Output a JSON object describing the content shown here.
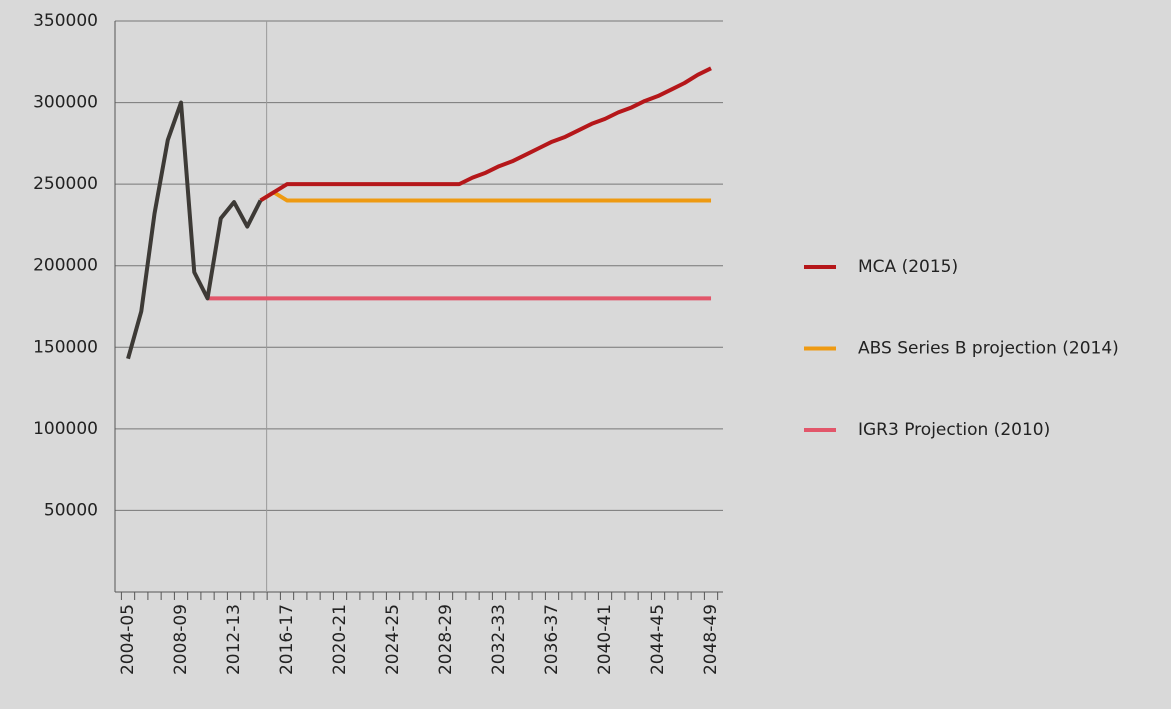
{
  "chart_data": {
    "type": "line",
    "categories": [
      "2004-05",
      null,
      null,
      null,
      "2008-09",
      null,
      null,
      null,
      "2012-13",
      null,
      null,
      null,
      "2016-17",
      null,
      null,
      null,
      "2020-21",
      null,
      null,
      null,
      "2024-25",
      null,
      null,
      null,
      "2028-29",
      null,
      null,
      null,
      "2032-33",
      null,
      null,
      null,
      "2036-37",
      null,
      null,
      null,
      "2040-41",
      null,
      null,
      null,
      "2044-45",
      null,
      null,
      null,
      "2048-49"
    ],
    "series": [
      {
        "color": "#3d3a36",
        "values": [
          143000,
          172000,
          232000,
          277000,
          300000,
          196000,
          180000,
          229000,
          239000,
          224000,
          240000,
          null,
          null,
          null,
          null,
          null,
          null,
          null,
          null,
          null,
          null,
          null,
          null,
          null,
          null,
          null,
          null,
          null,
          null,
          null,
          null,
          null,
          null,
          null,
          null,
          null,
          null,
          null,
          null,
          null,
          null,
          null,
          null,
          null,
          null
        ]
      },
      {
        "name": "MCA (2015)",
        "color": "#b5171a",
        "values": [
          null,
          null,
          null,
          null,
          null,
          null,
          null,
          null,
          null,
          null,
          240000,
          245000,
          250000,
          250000,
          250000,
          250000,
          250000,
          250000,
          250000,
          250000,
          250000,
          250000,
          250000,
          250000,
          250000,
          250000,
          254000,
          257000,
          261000,
          264000,
          268000,
          272000,
          276000,
          279000,
          283000,
          287000,
          290000,
          294000,
          297000,
          301000,
          304000,
          308000,
          312000,
          317000,
          321000
        ]
      },
      {
        "name": "ABS Series B projection (2014)",
        "color": "#ee9a12",
        "values": [
          null,
          null,
          null,
          null,
          null,
          null,
          null,
          null,
          null,
          null,
          240000,
          245000,
          240000,
          240000,
          240000,
          240000,
          240000,
          240000,
          240000,
          240000,
          240000,
          240000,
          240000,
          240000,
          240000,
          240000,
          240000,
          240000,
          240000,
          240000,
          240000,
          240000,
          240000,
          240000,
          240000,
          240000,
          240000,
          240000,
          240000,
          240000,
          240000,
          240000,
          240000,
          240000,
          240000
        ]
      },
      {
        "name": "IGR3 Projection (2010)",
        "color": "#e2566a",
        "values": [
          null,
          null,
          null,
          null,
          null,
          null,
          180000,
          180000,
          180000,
          180000,
          180000,
          180000,
          180000,
          180000,
          180000,
          180000,
          180000,
          180000,
          180000,
          180000,
          180000,
          180000,
          180000,
          180000,
          180000,
          180000,
          180000,
          180000,
          180000,
          180000,
          180000,
          180000,
          180000,
          180000,
          180000,
          180000,
          180000,
          180000,
          180000,
          180000,
          180000,
          180000,
          180000,
          180000,
          180000
        ]
      }
    ],
    "ylim": [
      0,
      350000
    ],
    "yticks": [
      50000,
      100000,
      150000,
      200000,
      250000,
      300000,
      350000
    ],
    "grid": true,
    "legend": "right"
  }
}
